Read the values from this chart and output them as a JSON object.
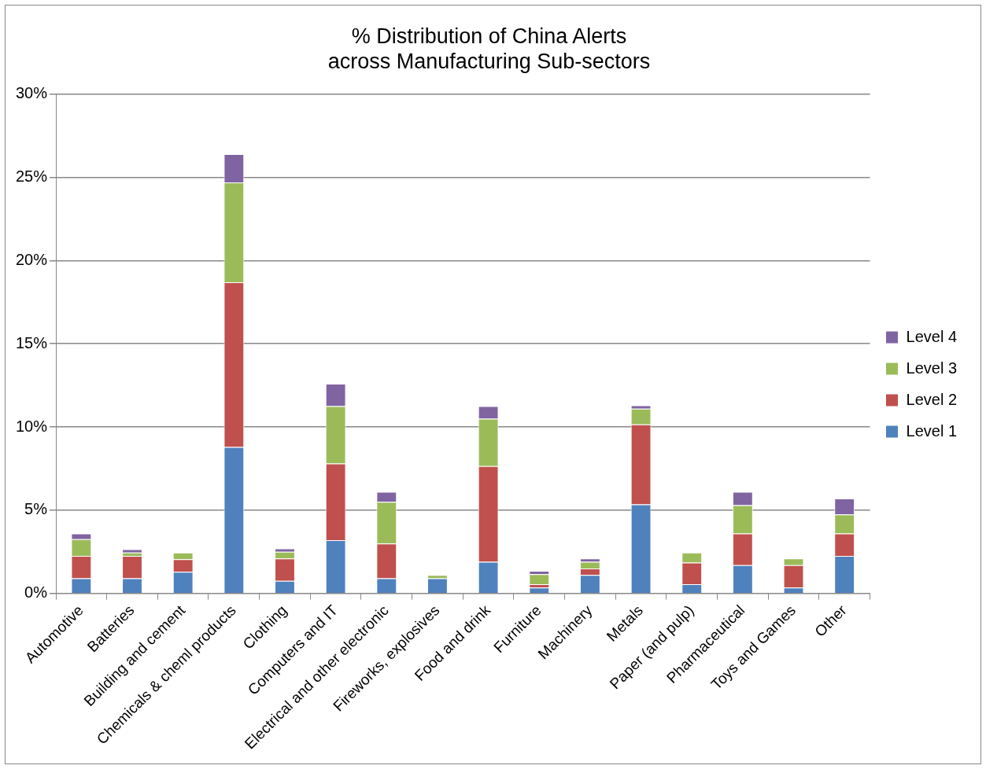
{
  "chart_data": {
    "type": "bar",
    "title": "% Distribution of China Alerts\nacross Manufacturing Sub-sectors",
    "stacked": true,
    "grid": "y",
    "legend": "right",
    "categories": [
      "Automotive",
      "Batteries",
      "Building and cement",
      "Chemicals & cheml products",
      "Clothing",
      "Computers and IT",
      "Electrical and other electronic",
      "Fireworks, explosives",
      "Food and drink",
      "Furniture",
      "Machinery",
      "Metals",
      "Paper (and pulp)",
      "Pharmaceutical",
      "Toys and Games",
      "Other"
    ],
    "ylim": [
      0,
      30
    ],
    "yticks": [
      {
        "value": 0,
        "label": "0%"
      },
      {
        "value": 5,
        "label": "5%"
      },
      {
        "value": 10,
        "label": "10%"
      },
      {
        "value": 15,
        "label": "15%"
      },
      {
        "value": 20,
        "label": "20%"
      },
      {
        "value": 25,
        "label": "25%"
      },
      {
        "value": 30,
        "label": "30%"
      }
    ],
    "series": [
      {
        "name": "Level 1",
        "color": "#4f81bd",
        "values": [
          0.9,
          0.9,
          1.3,
          8.8,
          0.75,
          3.2,
          0.9,
          0.9,
          1.9,
          0.35,
          1.1,
          5.35,
          0.55,
          1.7,
          0.35,
          2.25
        ]
      },
      {
        "name": "Level 2",
        "color": "#c0504d",
        "values": [
          1.35,
          1.35,
          0.75,
          9.9,
          1.35,
          4.6,
          2.1,
          null,
          5.75,
          0.2,
          0.4,
          4.8,
          1.3,
          1.9,
          1.35,
          1.35
        ]
      },
      {
        "name": "Level 3",
        "color": "#9bbb59",
        "values": [
          1.0,
          0.2,
          0.4,
          6.0,
          0.4,
          3.45,
          2.5,
          0.2,
          2.85,
          0.6,
          0.4,
          0.95,
          0.6,
          1.7,
          0.4,
          1.15
        ]
      },
      {
        "name": "Level 4",
        "color": "#8064a2",
        "values": [
          0.35,
          0.2,
          null,
          1.7,
          0.2,
          1.35,
          0.6,
          null,
          0.75,
          0.2,
          0.2,
          0.2,
          null,
          0.8,
          null,
          0.95
        ]
      }
    ]
  }
}
